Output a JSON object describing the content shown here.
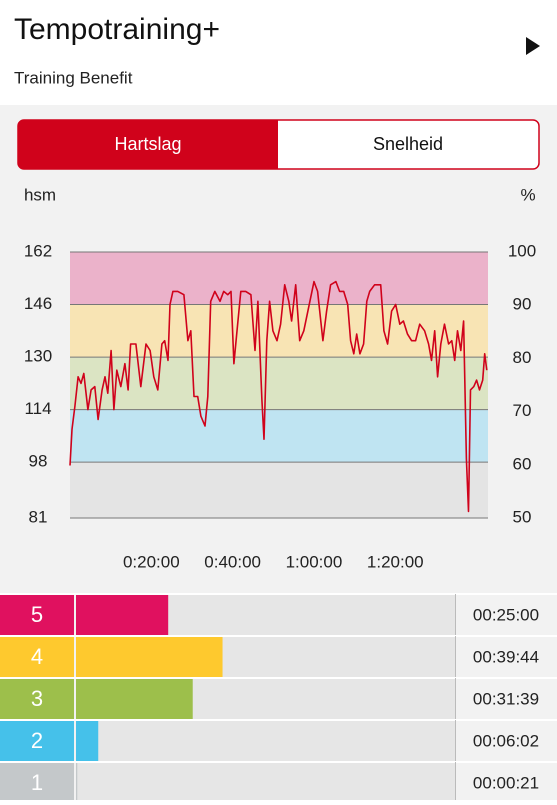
{
  "header": {
    "title": "Tempotraining+",
    "subtitle": "Training Benefit"
  },
  "tabs": [
    "Hartslag",
    "Snelheid"
  ],
  "chart_data": [
    {
      "type": "line",
      "y_label": "hsm",
      "y2_label": "%",
      "xlim": [
        0,
        102.8
      ],
      "xticks": [
        {
          "value": 20,
          "label": "0:20:00"
        },
        {
          "value": 40,
          "label": "0:40:00"
        },
        {
          "value": 60,
          "label": "1:00:00"
        },
        {
          "value": 80,
          "label": "1:20:00"
        }
      ],
      "ylim": [
        81,
        162
      ],
      "yticks": [
        81,
        98,
        114,
        130,
        146,
        162
      ],
      "y2lim": [
        50,
        100
      ],
      "y2ticks": [
        50,
        60,
        70,
        80,
        90,
        100
      ],
      "bands": [
        {
          "from": 81,
          "to": 98,
          "color": "#e4e4e4"
        },
        {
          "from": 98,
          "to": 114,
          "color": "#bfe4f2"
        },
        {
          "from": 114,
          "to": 130,
          "color": "#dbe4c3"
        },
        {
          "from": 130,
          "to": 146,
          "color": "#f8e4b4"
        },
        {
          "from": 146,
          "to": 162,
          "color": "#ebb2ca"
        }
      ],
      "grid": true,
      "x": [
        0,
        0.5,
        1.2,
        2,
        2.7,
        3.4,
        4.4,
        5.2,
        6.1,
        6.9,
        7.9,
        8.6,
        9.3,
        10.1,
        10.8,
        11.5,
        12.5,
        13.5,
        14.3,
        14.9,
        16.2,
        17.4,
        18.7,
        19.7,
        20.6,
        21.6,
        22.6,
        23.3,
        24.1,
        24.6,
        25.3,
        26.5,
        28,
        29,
        29.7,
        30.5,
        31.4,
        32.2,
        33.2,
        33.9,
        34.6,
        35.6,
        36.9,
        37.8,
        38.8,
        39.6,
        40.3,
        41,
        42,
        43.2,
        44.5,
        45.5,
        46.2,
        47.2,
        47.7,
        48.4,
        49.1,
        49.9,
        50.9,
        51.8,
        52.8,
        53.8,
        54.5,
        55.5,
        56.5,
        57.5,
        59,
        60,
        60.9,
        62.2,
        63.1,
        64.1,
        65.4,
        66.3,
        67.3,
        68.3,
        69,
        69.8,
        70.5,
        71.3,
        72.2,
        73,
        73.7,
        74.9,
        76.4,
        77.2,
        78.1,
        79.1,
        80.1,
        81.1,
        82,
        83,
        84,
        85,
        86,
        87.2,
        88.2,
        88.9,
        89.7,
        90.4,
        91.2,
        92.1,
        93.1,
        93.9,
        94.6,
        95.3,
        96.1,
        96.8,
        97.5,
        98,
        98.5,
        99.3,
        100,
        100.7,
        101.5,
        102,
        102.5
      ],
      "series": [
        {
          "name": "Hartslag",
          "color": "#d0021b",
          "values": [
            97,
            108,
            115,
            124,
            122,
            125,
            114,
            120,
            121,
            111,
            120,
            124,
            119,
            132,
            114,
            126,
            121,
            128,
            120,
            134,
            134,
            121,
            134,
            132,
            124,
            120,
            134,
            135,
            129,
            146,
            150,
            150,
            149,
            135,
            138,
            118,
            118,
            112,
            109,
            118,
            147,
            150,
            147,
            150,
            149,
            150,
            128,
            137,
            150,
            150,
            149,
            132,
            147,
            117,
            105,
            135,
            147,
            138,
            135,
            140,
            152,
            147,
            141,
            152,
            135,
            138,
            147,
            153,
            150,
            135,
            144,
            152,
            153,
            150,
            150,
            146,
            135,
            131,
            137,
            131,
            134,
            147,
            150,
            152,
            152,
            138,
            134,
            144,
            146,
            140,
            141,
            137,
            135,
            135,
            140,
            138,
            134,
            129,
            138,
            124,
            134,
            140,
            134,
            135,
            129,
            138,
            132,
            141,
            99,
            83,
            120,
            121,
            123,
            120,
            123,
            131,
            126
          ]
        }
      ]
    },
    {
      "type": "hbar",
      "categories": [
        "5",
        "4",
        "3",
        "2",
        "1"
      ],
      "colors": [
        "#e0115f",
        "#fec92e",
        "#9dbf4b",
        "#45c1ea",
        "#c4c8ca"
      ],
      "xlim": [
        0,
        6166
      ],
      "values": [
        1500,
        2384,
        1899,
        362,
        21
      ],
      "value_labels": [
        "00:25:00",
        "00:39:44",
        "00:31:39",
        "00:06:02",
        "00:00:21"
      ]
    }
  ]
}
